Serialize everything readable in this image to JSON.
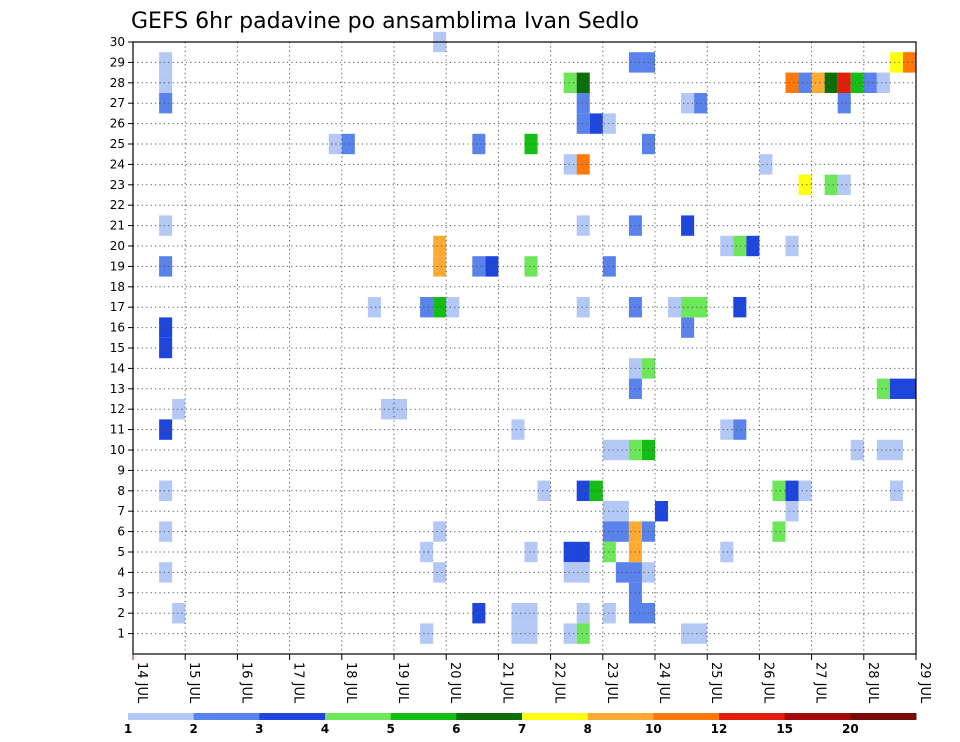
{
  "chart_data": {
    "type": "heatmap",
    "title": "GEFS 6hr padavine po ansamblima Ivan Sedlo",
    "x_range_days": [
      14,
      29
    ],
    "x_tick_labels": [
      "14 JUL",
      "15 JUL",
      "16 JUL",
      "17 JUL",
      "18 JUL",
      "19 JUL",
      "20 JUL",
      "21 JUL",
      "22 JUL",
      "23 JUL",
      "24 JUL",
      "25 JUL",
      "26 JUL",
      "27 JUL",
      "28 JUL",
      "29 JUL"
    ],
    "y_range": [
      0,
      30
    ],
    "y_tick_labels": [
      "1",
      "2",
      "3",
      "4",
      "5",
      "6",
      "7",
      "8",
      "9",
      "10",
      "11",
      "12",
      "13",
      "14",
      "15",
      "16",
      "17",
      "18",
      "19",
      "20",
      "21",
      "22",
      "23",
      "24",
      "25",
      "26",
      "27",
      "28",
      "29",
      "30"
    ],
    "grid": true,
    "legend": {
      "placement": "bottom",
      "labels": [
        "1",
        "2",
        "3",
        "4",
        "5",
        "6",
        "7",
        "8",
        "10",
        "12",
        "15",
        "20"
      ],
      "colors": [
        "#b4c8f5",
        "#5a82eb",
        "#1e46dc",
        "#6ee65a",
        "#14be14",
        "#0a6e0a",
        "#ffff14",
        "#ffaa32",
        "#ff780a",
        "#e11e0a",
        "#a50a0a",
        "#780a0a"
      ]
    },
    "cells_note": "each cell: [day_start, day_end, member, color_index]",
    "cells": [
      [
        14.5,
        14.75,
        29,
        0
      ],
      [
        14.5,
        14.75,
        28,
        0
      ],
      [
        14.5,
        14.75,
        27,
        1
      ],
      [
        14.5,
        14.75,
        21,
        0
      ],
      [
        14.5,
        14.75,
        19,
        1
      ],
      [
        14.5,
        14.75,
        16,
        2
      ],
      [
        14.5,
        14.75,
        15,
        2
      ],
      [
        14.5,
        14.75,
        11,
        2
      ],
      [
        14.5,
        14.75,
        8,
        0
      ],
      [
        14.5,
        14.75,
        6,
        0
      ],
      [
        14.5,
        14.75,
        4,
        0
      ],
      [
        14.75,
        15.0,
        12,
        0
      ],
      [
        14.75,
        15.0,
        2,
        0
      ],
      [
        17.75,
        18.0,
        25,
        0
      ],
      [
        18.0,
        18.25,
        25,
        1
      ],
      [
        18.5,
        18.75,
        17,
        0
      ],
      [
        18.75,
        19.25,
        12,
        0
      ],
      [
        19.5,
        19.75,
        5,
        0
      ],
      [
        19.5,
        19.75,
        1,
        0
      ],
      [
        19.75,
        20.0,
        30,
        0
      ],
      [
        19.75,
        20.0,
        20,
        7
      ],
      [
        19.75,
        20.0,
        19,
        7
      ],
      [
        19.75,
        20.0,
        6,
        0
      ],
      [
        19.75,
        20.0,
        4,
        0
      ],
      [
        19.5,
        19.75,
        17,
        1
      ],
      [
        19.75,
        20.0,
        17,
        4
      ],
      [
        20.0,
        20.25,
        17,
        0
      ],
      [
        20.5,
        20.75,
        25,
        1
      ],
      [
        20.5,
        20.75,
        19,
        1
      ],
      [
        20.75,
        21.0,
        19,
        2
      ],
      [
        20.5,
        20.75,
        2,
        2
      ],
      [
        21.25,
        21.5,
        11,
        0
      ],
      [
        21.5,
        21.75,
        25,
        4
      ],
      [
        21.5,
        21.75,
        19,
        3
      ],
      [
        21.5,
        21.75,
        5,
        0
      ],
      [
        21.25,
        21.75,
        2,
        0
      ],
      [
        21.25,
        21.75,
        1,
        0
      ],
      [
        21.75,
        22.0,
        8,
        0
      ],
      [
        22.25,
        22.5,
        28,
        3
      ],
      [
        22.5,
        22.75,
        28,
        5
      ],
      [
        22.5,
        22.75,
        27,
        1
      ],
      [
        22.5,
        22.75,
        26,
        1
      ],
      [
        22.75,
        23.0,
        26,
        2
      ],
      [
        23.0,
        23.25,
        26,
        0
      ],
      [
        22.25,
        22.5,
        24,
        0
      ],
      [
        22.5,
        22.75,
        24,
        8
      ],
      [
        22.5,
        22.75,
        21,
        0
      ],
      [
        22.5,
        22.75,
        17,
        0
      ],
      [
        22.5,
        22.75,
        8,
        2
      ],
      [
        22.75,
        23.0,
        8,
        4
      ],
      [
        22.25,
        22.75,
        5,
        2
      ],
      [
        22.25,
        22.75,
        4,
        0
      ],
      [
        22.5,
        22.75,
        2,
        0
      ],
      [
        22.25,
        22.5,
        1,
        0
      ],
      [
        22.5,
        22.75,
        1,
        3
      ],
      [
        23.0,
        23.25,
        19,
        1
      ],
      [
        23.0,
        23.5,
        10,
        0
      ],
      [
        23.0,
        23.5,
        7,
        0
      ],
      [
        23.0,
        23.5,
        6,
        1
      ],
      [
        23.0,
        23.25,
        5,
        3
      ],
      [
        23.0,
        23.25,
        2,
        0
      ],
      [
        23.25,
        23.75,
        4,
        1
      ],
      [
        23.5,
        23.75,
        29,
        1
      ],
      [
        23.75,
        24.0,
        29,
        1
      ],
      [
        23.5,
        23.75,
        21,
        1
      ],
      [
        23.5,
        23.75,
        17,
        1
      ],
      [
        23.5,
        23.75,
        14,
        0
      ],
      [
        23.75,
        24.0,
        14,
        3
      ],
      [
        23.5,
        23.75,
        13,
        1
      ],
      [
        23.5,
        23.75,
        10,
        3
      ],
      [
        23.75,
        24.0,
        10,
        4
      ],
      [
        23.5,
        23.75,
        6,
        7
      ],
      [
        23.75,
        24.0,
        6,
        1
      ],
      [
        23.5,
        23.75,
        5,
        7
      ],
      [
        23.5,
        23.75,
        3,
        1
      ],
      [
        23.5,
        24.0,
        2,
        1
      ],
      [
        23.75,
        24.0,
        25,
        1
      ],
      [
        23.75,
        24.0,
        4,
        0
      ],
      [
        24.0,
        24.25,
        7,
        2
      ],
      [
        24.25,
        24.5,
        17,
        0
      ],
      [
        24.5,
        24.75,
        27,
        0
      ],
      [
        24.75,
        25.0,
        27,
        1
      ],
      [
        24.5,
        24.75,
        21,
        2
      ],
      [
        24.5,
        24.75,
        16,
        1
      ],
      [
        24.5,
        25.0,
        17,
        3
      ],
      [
        24.5,
        25.0,
        1,
        0
      ],
      [
        25.25,
        25.5,
        20,
        0
      ],
      [
        25.5,
        25.75,
        20,
        3
      ],
      [
        25.75,
        26.0,
        20,
        2
      ],
      [
        25.5,
        25.75,
        17,
        2
      ],
      [
        25.25,
        25.5,
        11,
        0
      ],
      [
        25.5,
        25.75,
        11,
        1
      ],
      [
        25.25,
        25.5,
        5,
        0
      ],
      [
        26.0,
        26.25,
        24,
        0
      ],
      [
        26.25,
        26.5,
        8,
        3
      ],
      [
        26.5,
        26.75,
        8,
        2
      ],
      [
        26.75,
        27.0,
        8,
        0
      ],
      [
        26.25,
        26.5,
        6,
        3
      ],
      [
        26.5,
        26.75,
        20,
        0
      ],
      [
        26.5,
        26.75,
        7,
        0
      ],
      [
        26.5,
        26.75,
        28,
        8
      ],
      [
        26.75,
        27.0,
        28,
        1
      ],
      [
        27.0,
        27.25,
        28,
        7
      ],
      [
        27.25,
        27.5,
        28,
        5
      ],
      [
        27.5,
        27.75,
        28,
        9
      ],
      [
        27.75,
        28.0,
        28,
        4
      ],
      [
        28.0,
        28.25,
        28,
        1
      ],
      [
        28.25,
        28.5,
        28,
        0
      ],
      [
        26.75,
        27.0,
        23,
        6
      ],
      [
        27.25,
        27.5,
        23,
        3
      ],
      [
        27.5,
        27.75,
        23,
        0
      ],
      [
        27.5,
        27.75,
        27,
        1
      ],
      [
        27.75,
        28.0,
        10,
        0
      ],
      [
        28.25,
        28.75,
        10,
        0
      ],
      [
        28.25,
        28.5,
        13,
        3
      ],
      [
        28.5,
        29.0,
        13,
        2
      ],
      [
        28.5,
        28.75,
        8,
        0
      ],
      [
        28.5,
        28.75,
        29,
        6
      ],
      [
        28.75,
        29.0,
        29,
        8
      ]
    ]
  }
}
